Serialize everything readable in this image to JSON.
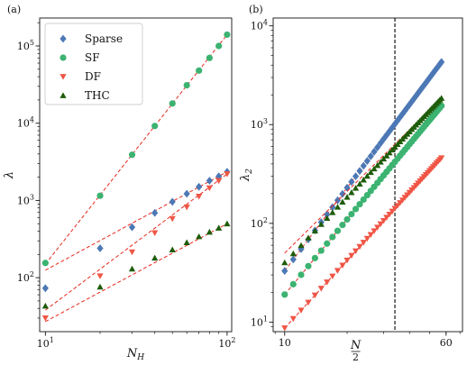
{
  "chart_data": [
    {
      "panel_label": "(a)",
      "type": "scatter",
      "xlabel": "N_H",
      "ylabel": "λ",
      "xscale": "log",
      "yscale": "log",
      "xlim": [
        9.3,
        106
      ],
      "ylim": [
        20,
        230000
      ],
      "xticks": [
        {
          "v": 10,
          "label": "10^1"
        },
        {
          "v": 100,
          "label": "10^2"
        }
      ],
      "yticks": [
        {
          "v": 100,
          "label": "10^2"
        },
        {
          "v": 1000,
          "label": "10^3"
        },
        {
          "v": 10000,
          "label": "10^4"
        },
        {
          "v": 100000,
          "label": "10^5"
        }
      ],
      "legend_position": "upper-left",
      "series": [
        {
          "name": "Sparse",
          "color": "#4c78b5",
          "marker": "diamond",
          "x": [
            10,
            20,
            30,
            40,
            50,
            60,
            70,
            80,
            90,
            100
          ],
          "y": [
            73,
            240,
            450,
            690,
            960,
            1220,
            1500,
            1800,
            2050,
            2350
          ],
          "fit": [
            [
              10,
              125
            ],
            [
              100,
              2350
            ]
          ]
        },
        {
          "name": "SF",
          "color": "#3cb371",
          "marker": "circle",
          "x": [
            10,
            20,
            30,
            40,
            50,
            60,
            70,
            80,
            90,
            100
          ],
          "y": [
            155,
            1150,
            3900,
            9200,
            18000,
            31000,
            48000,
            70000,
            100000,
            140000
          ],
          "fit": [
            [
              10,
              150
            ],
            [
              100,
              140000
            ]
          ]
        },
        {
          "name": "DF",
          "color": "#f05545",
          "marker": "triangle-down",
          "x": [
            10,
            20,
            30,
            40,
            50,
            60,
            70,
            80,
            90,
            100
          ],
          "y": [
            30,
            105,
            215,
            380,
            580,
            820,
            1130,
            1450,
            1800,
            2200
          ],
          "fit": [
            [
              10,
              38
            ],
            [
              100,
              2200
            ]
          ]
        },
        {
          "name": "THC",
          "color": "#1e5c0a",
          "marker": "triangle-up",
          "x": [
            10,
            20,
            30,
            40,
            50,
            60,
            70,
            80,
            90,
            100
          ],
          "y": [
            43,
            76,
            130,
            180,
            230,
            285,
            340,
            390,
            440,
            500
          ],
          "fit": [
            [
              10,
              27
            ],
            [
              100,
              500
            ]
          ]
        }
      ]
    },
    {
      "panel_label": "(b)",
      "type": "scatter",
      "xlabel": "N/2",
      "ylabel": "λ_2",
      "xscale": "log",
      "yscale": "log",
      "xlim": [
        8.8,
        72
      ],
      "ylim": [
        8,
        12000
      ],
      "xticks": [
        {
          "v": 10,
          "label": "10"
        },
        {
          "v": 60,
          "label": "60"
        }
      ],
      "yticks": [
        {
          "v": 10,
          "label": "10^1"
        },
        {
          "v": 100,
          "label": "10^2"
        },
        {
          "v": 1000,
          "label": "10^3"
        },
        {
          "v": 10000,
          "label": "10^4"
        }
      ],
      "vline_x": 34,
      "series": [
        {
          "name": "Sparse",
          "color": "#4c78b5",
          "marker": "diamond",
          "xrange": [
            10,
            57
          ],
          "y_start": 33,
          "y_end": 4300,
          "fit": [
            [
              10,
              33
            ],
            [
              57,
              4300
            ]
          ]
        },
        {
          "name": "SF",
          "color": "#3cb371",
          "marker": "circle",
          "xrange": [
            10,
            57
          ],
          "y_start": 19,
          "y_end": 1550,
          "fit": [
            [
              10,
              19
            ],
            [
              57,
              1550
            ]
          ]
        },
        {
          "name": "DF",
          "color": "#f05545",
          "marker": "triangle-down",
          "xrange": [
            10,
            57
          ],
          "y_start": 8.7,
          "y_end": 460,
          "fit": [
            [
              10,
              8.7
            ],
            [
              57,
              460
            ]
          ]
        },
        {
          "name": "THC",
          "color": "#1e5c0a",
          "marker": "triangle-up",
          "xrange": [
            10,
            57
          ],
          "y_start": 40,
          "y_end": 1850,
          "fit": [
            [
              10,
              50
            ],
            [
              57,
              1850
            ]
          ]
        }
      ]
    }
  ]
}
